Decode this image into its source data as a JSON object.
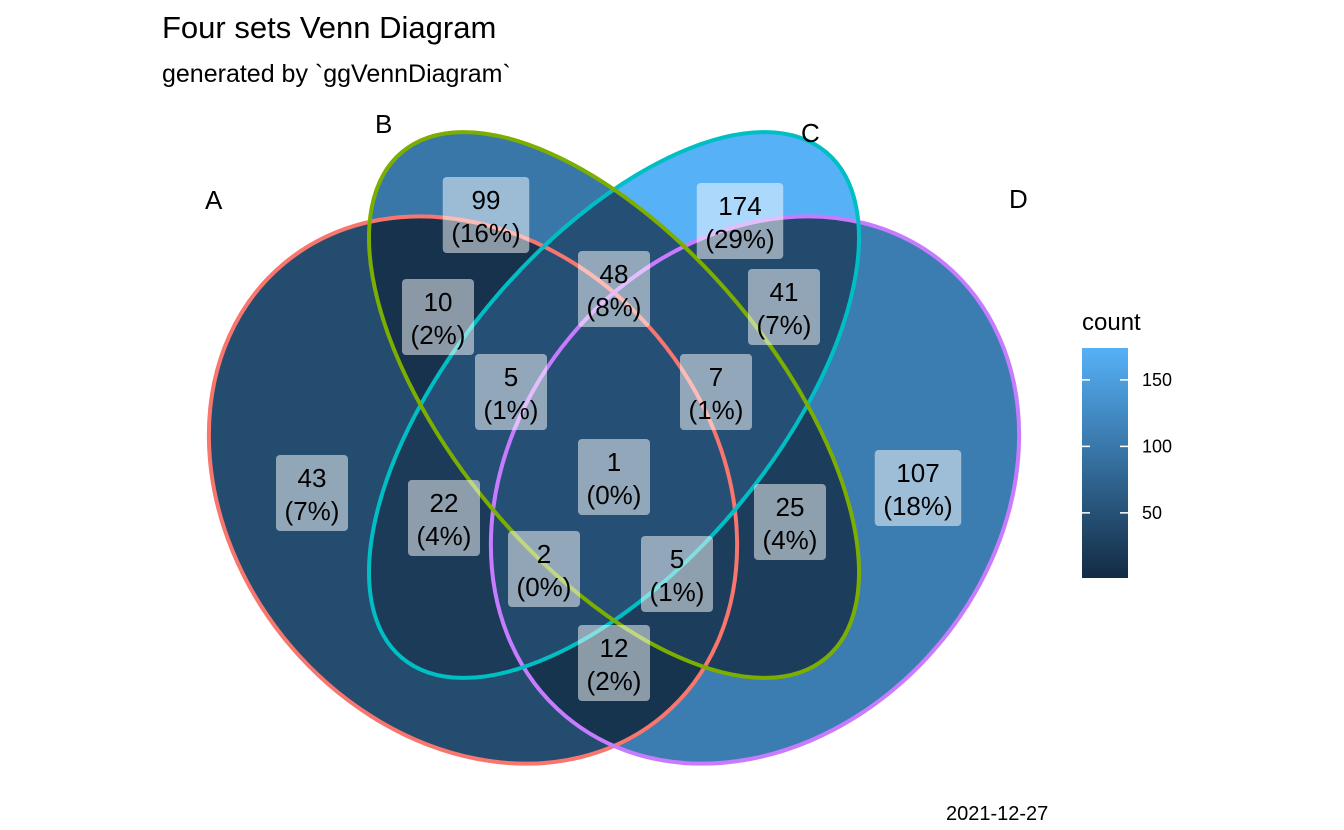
{
  "title": "Four sets Venn Diagram",
  "subtitle": "generated by `ggVennDiagram`",
  "caption": "2021-12-27",
  "sets": [
    {
      "name": "A",
      "color": "#F8766D"
    },
    {
      "name": "B",
      "color": "#7CAE00"
    },
    {
      "name": "C",
      "color": "#00BFC4"
    },
    {
      "name": "D",
      "color": "#C77CFF"
    }
  ],
  "regions": [
    {
      "sets": "A",
      "count": "43",
      "percent": "(7%)",
      "value": 43
    },
    {
      "sets": "B",
      "count": "99",
      "percent": "(16%)",
      "value": 99
    },
    {
      "sets": "C",
      "count": "174",
      "percent": "(29%)",
      "value": 174
    },
    {
      "sets": "D",
      "count": "107",
      "percent": "(18%)",
      "value": 107
    },
    {
      "sets": "A..B",
      "count": "10",
      "percent": "(2%)",
      "value": 10
    },
    {
      "sets": "A..C",
      "count": "22",
      "percent": "(4%)",
      "value": 22
    },
    {
      "sets": "A..D",
      "count": "12",
      "percent": "(2%)",
      "value": 12
    },
    {
      "sets": "B..C",
      "count": "48",
      "percent": "(8%)",
      "value": 48
    },
    {
      "sets": "B..D",
      "count": "25",
      "percent": "(4%)",
      "value": 25
    },
    {
      "sets": "C..D",
      "count": "41",
      "percent": "(7%)",
      "value": 41
    },
    {
      "sets": "A..B..C",
      "count": "5",
      "percent": "(1%)",
      "value": 5
    },
    {
      "sets": "A..B..D",
      "count": "5",
      "percent": "(1%)",
      "value": 5
    },
    {
      "sets": "A..C..D",
      "count": "2",
      "percent": "(0%)",
      "value": 2
    },
    {
      "sets": "B..C..D",
      "count": "7",
      "percent": "(1%)",
      "value": 7
    },
    {
      "sets": "A..B..C..D",
      "count": "1",
      "percent": "(0%)",
      "value": 1
    }
  ],
  "legend": {
    "title": "count",
    "ticks": [
      {
        "label": "150",
        "value": 150
      },
      {
        "label": "100",
        "value": 100
      },
      {
        "label": "50",
        "value": 50
      }
    ],
    "min": 1,
    "max": 174,
    "low_color": "#132B43",
    "high_color": "#56B1F7"
  }
}
